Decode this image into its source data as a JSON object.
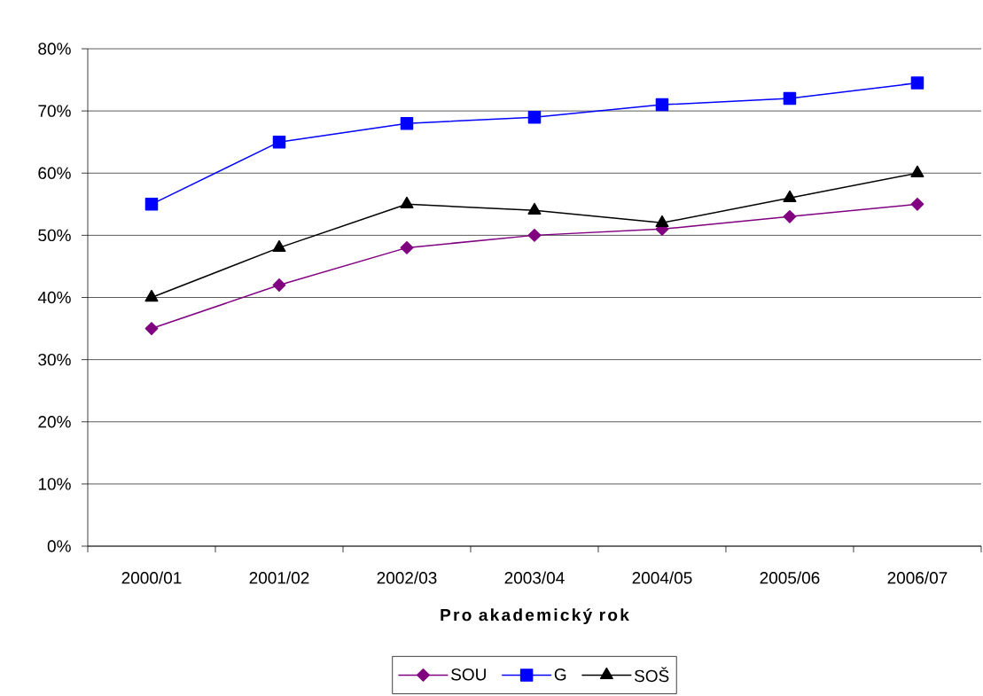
{
  "chart_data": {
    "type": "line",
    "xlabel": "Pro akademický rok",
    "categories": [
      "2000/01",
      "2001/02",
      "2002/03",
      "2003/04",
      "2004/05",
      "2005/06",
      "2006/07"
    ],
    "series": [
      {
        "name": "SOU",
        "color": "#800080",
        "marker": "diamond",
        "values": [
          35,
          42,
          48,
          50,
          51,
          53,
          55
        ]
      },
      {
        "name": "G",
        "color": "#0000ff",
        "marker": "square",
        "values": [
          55,
          65,
          68,
          69,
          71,
          72,
          74.5
        ]
      },
      {
        "name": "SOŠ",
        "color": "#000000",
        "marker": "triangle",
        "values": [
          40,
          48,
          55,
          54,
          52,
          56,
          60
        ]
      }
    ],
    "ylim": [
      0,
      80
    ],
    "yticks": [
      {
        "value": 0,
        "label": "0%"
      },
      {
        "value": 10,
        "label": "10%"
      },
      {
        "value": 20,
        "label": "20%"
      },
      {
        "value": 30,
        "label": "30%"
      },
      {
        "value": 40,
        "label": "40%"
      },
      {
        "value": 50,
        "label": "50%"
      },
      {
        "value": 60,
        "label": "60%"
      },
      {
        "value": 70,
        "label": "70%"
      },
      {
        "value": 80,
        "label": "80%"
      }
    ],
    "grid": "y",
    "legend": "bottom",
    "line_style": "solid"
  }
}
